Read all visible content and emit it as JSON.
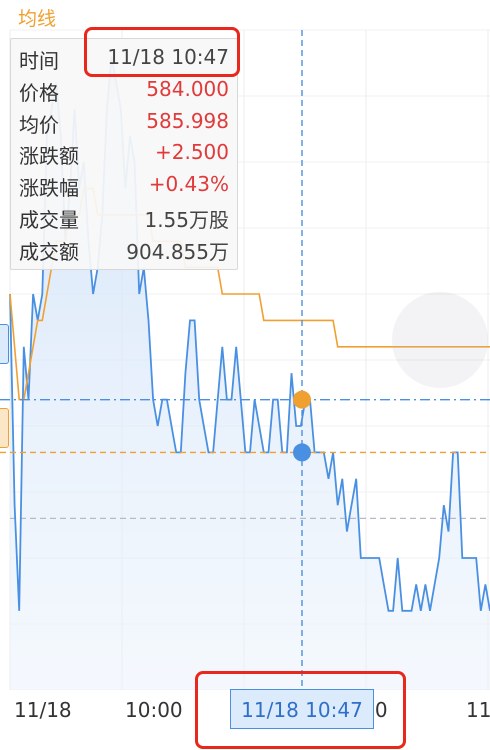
{
  "header": {
    "title": "均线"
  },
  "tooltip": {
    "rows": [
      {
        "label": "时间",
        "value": "11/18 10:47",
        "tone": "normal"
      },
      {
        "label": "价格",
        "value": "584.000",
        "tone": "up"
      },
      {
        "label": "均价",
        "value": "585.998",
        "tone": "up"
      },
      {
        "label": "涨跌额",
        "value": "+2.500",
        "tone": "up"
      },
      {
        "label": "涨跌幅",
        "value": "+0.43%",
        "tone": "up"
      },
      {
        "label": "成交量",
        "value": "1.55万股",
        "tone": "normal"
      },
      {
        "label": "成交额",
        "value": "904.855万",
        "tone": "normal"
      }
    ]
  },
  "x_axis": {
    "labels": [
      "11/18",
      "10:00",
      "11:00",
      "11"
    ],
    "cursor_label": "11/18 10:47"
  },
  "colors": {
    "price_line": "#4a90e2",
    "avg_line": "#f0a030",
    "up": "#e03a3a",
    "highlight": "#e8281c"
  },
  "chart_data": {
    "type": "line",
    "series": [
      {
        "name": "价格",
        "values": [
          590,
          582,
          578,
          588,
          586,
          590,
          589,
          590,
          596,
          597,
          598,
          596,
          592,
          594,
          597,
          594,
          595,
          592,
          590,
          591,
          593,
          597,
          599,
          598,
          597,
          594,
          596,
          595,
          590,
          591,
          589,
          586,
          585,
          586,
          586,
          585,
          584,
          584,
          587,
          589,
          589,
          586,
          585,
          584,
          584,
          586,
          588,
          586,
          586,
          588,
          586,
          584,
          584,
          586,
          585,
          584,
          584,
          586,
          586,
          584,
          584,
          587,
          585,
          585,
          586,
          586,
          584,
          584,
          584,
          583,
          584,
          582,
          583,
          581,
          582,
          583,
          580,
          580,
          580,
          580,
          580,
          579,
          578,
          578,
          580,
          578,
          578,
          578,
          579,
          578,
          579,
          578,
          579,
          580,
          582,
          581,
          584,
          584,
          580,
          580,
          580,
          580,
          578,
          579,
          578
        ]
      },
      {
        "name": "均价",
        "values": [
          590,
          588,
          586,
          586,
          587,
          588,
          589,
          589,
          590,
          591,
          592,
          592,
          592,
          593,
          593,
          593,
          594,
          594,
          594,
          593,
          593,
          593,
          593,
          593,
          593,
          593,
          593,
          593,
          593,
          593,
          593,
          592,
          592,
          592,
          592,
          592,
          592,
          592,
          591,
          591,
          591,
          591,
          591,
          591,
          591,
          591,
          590,
          590,
          590,
          590,
          590,
          590,
          590,
          590,
          590,
          589,
          589,
          589,
          589,
          589,
          589,
          589,
          589,
          589,
          589,
          589,
          589,
          589,
          589,
          589,
          589,
          588,
          588,
          588,
          588,
          588,
          588,
          588,
          588,
          588,
          588,
          588,
          588,
          588,
          588,
          588,
          588,
          588,
          588,
          588,
          588,
          588,
          588,
          588,
          588,
          588,
          588,
          588,
          588,
          588,
          588,
          588,
          588,
          588,
          588
        ]
      }
    ],
    "cursor": {
      "time": "11/18 10:47",
      "price": 584.0,
      "avg": 585.998
    },
    "reference_line": 581.5,
    "ylim": [
      575,
      600
    ],
    "grid": true,
    "legend": "none"
  }
}
